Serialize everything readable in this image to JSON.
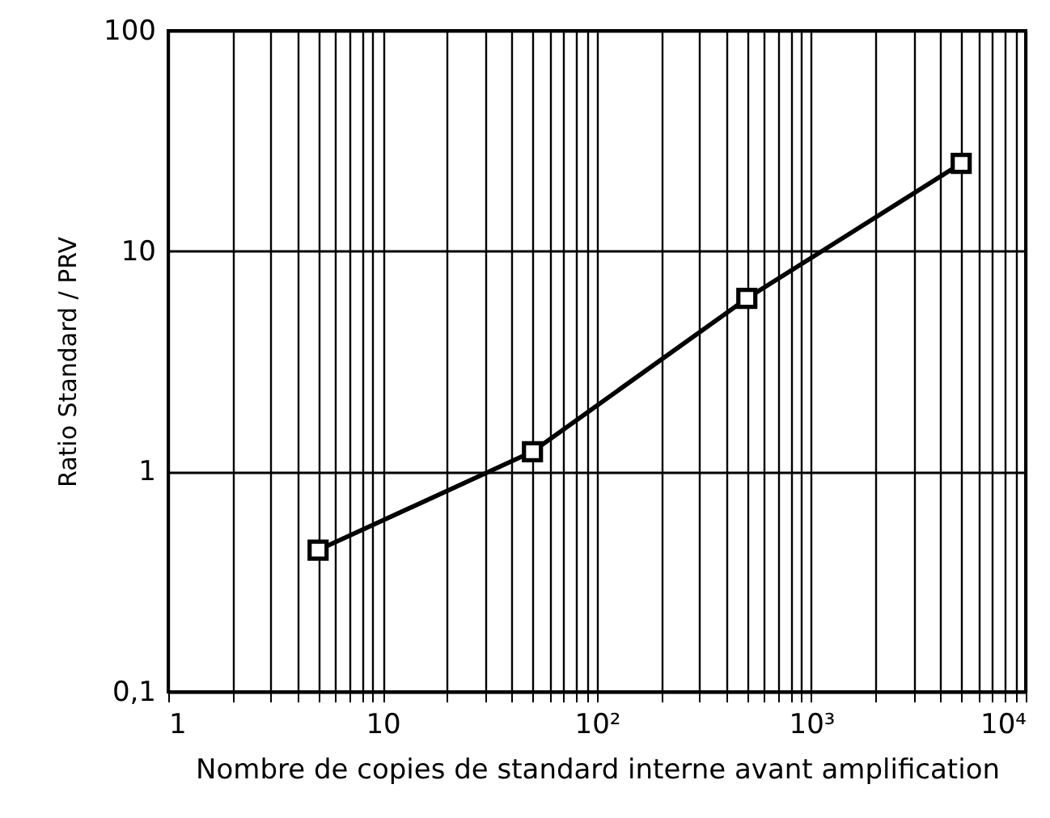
{
  "chart_data": {
    "type": "line",
    "xlabel": "Nombre de copies de standard interne avant amplification",
    "ylabel": "Ratio Standard / PRV",
    "x": [
      5,
      50,
      500,
      5000
    ],
    "series": [
      {
        "color": "#000000",
        "values": [
          0.44,
          1.23,
          6.1,
          25
        ]
      }
    ],
    "log": "xy",
    "xlim": [
      1,
      10000
    ],
    "ylim": [
      0.1,
      100
    ],
    "xticks": [
      1,
      {
        "value": 2,
        "label": null
      },
      {
        "value": 3,
        "label": null
      },
      {
        "value": 4,
        "label": null
      },
      {
        "value": 5,
        "label": null
      },
      {
        "value": 6,
        "label": null
      },
      {
        "value": 7,
        "label": null
      },
      {
        "value": 8,
        "label": null
      },
      {
        "value": 9,
        "label": null
      },
      10,
      {
        "value": 20,
        "label": null
      },
      {
        "value": 30,
        "label": null
      },
      {
        "value": 40,
        "label": null
      },
      {
        "value": 50,
        "label": null
      },
      {
        "value": 60,
        "label": null
      },
      {
        "value": 70,
        "label": null
      },
      {
        "value": 80,
        "label": null
      },
      {
        "value": 90,
        "label": null
      },
      {
        "value": 100,
        "label": "10²"
      },
      {
        "value": 200,
        "label": null
      },
      {
        "value": 300,
        "label": null
      },
      {
        "value": 400,
        "label": null
      },
      {
        "value": 500,
        "label": null
      },
      {
        "value": 600,
        "label": null
      },
      {
        "value": 700,
        "label": null
      },
      {
        "value": 800,
        "label": null
      },
      {
        "value": 900,
        "label": null
      },
      {
        "value": 1000,
        "label": "10³"
      },
      {
        "value": 2000,
        "label": null
      },
      {
        "value": 3000,
        "label": null
      },
      {
        "value": 4000,
        "label": null
      },
      {
        "value": 5000,
        "label": null
      },
      {
        "value": 6000,
        "label": null
      },
      {
        "value": 7000,
        "label": null
      },
      {
        "value": 8000,
        "label": null
      },
      {
        "value": 9000,
        "label": null
      },
      {
        "value": 10000,
        "label": "10⁴"
      }
    ],
    "yticks": [
      {
        "value": 0.1,
        "label": "0,1"
      },
      1,
      10,
      100
    ],
    "grid": true,
    "marker": "square",
    "line_style": "solid"
  }
}
